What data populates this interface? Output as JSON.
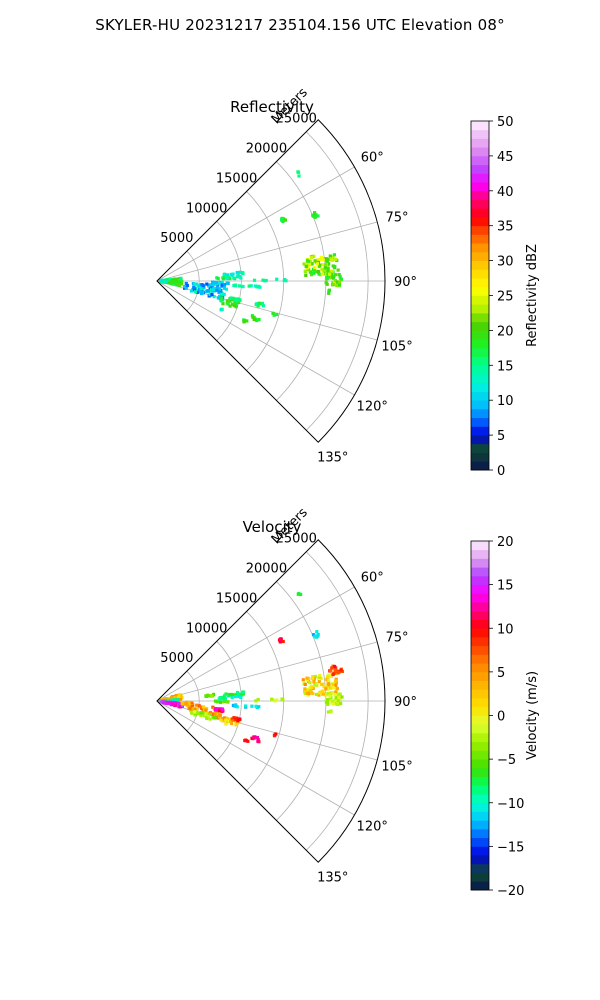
{
  "page_title": "SKYLER-HU  20231217  235104.156 UTC Elevation 08°",
  "chart_data": [
    {
      "type": "heatmap",
      "title": "Reflectivity",
      "projection": "polar sector",
      "range_axis_label": "Meters",
      "range_ticks": [
        5000,
        10000,
        15000,
        20000,
        25000
      ],
      "range_tick_labels": [
        "5000",
        "10000",
        "15000",
        "20000",
        "25000"
      ],
      "azimuth_range": [
        45,
        135
      ],
      "azimuth_ticks": [
        60,
        75,
        90,
        105,
        120,
        135
      ],
      "azimuth_tick_labels": [
        "60°",
        "75°",
        "90°",
        "105°",
        "120°",
        "135°"
      ],
      "grid": true,
      "colorbar": {
        "label": "Reflectivity dBZ",
        "min": 0,
        "max": 50,
        "ticks": [
          0,
          5,
          10,
          15,
          20,
          25,
          30,
          35,
          40,
          45,
          50
        ],
        "tick_labels": [
          "0",
          "5",
          "10",
          "15",
          "20",
          "25",
          "30",
          "35",
          "40",
          "45",
          "50"
        ],
        "stops": [
          {
            "v": 0,
            "c": "#0a1450"
          },
          {
            "v": 3,
            "c": "#0e4a30"
          },
          {
            "v": 5,
            "c": "#0000e0"
          },
          {
            "v": 7,
            "c": "#0060ff"
          },
          {
            "v": 9,
            "c": "#00b8ff"
          },
          {
            "v": 12,
            "c": "#00f0e0"
          },
          {
            "v": 15,
            "c": "#00ff90"
          },
          {
            "v": 18,
            "c": "#20f020"
          },
          {
            "v": 21,
            "c": "#50d000"
          },
          {
            "v": 23,
            "c": "#b0f000"
          },
          {
            "v": 26,
            "c": "#ffff00"
          },
          {
            "v": 29,
            "c": "#ffd000"
          },
          {
            "v": 32,
            "c": "#ff9000"
          },
          {
            "v": 34,
            "c": "#ff5000"
          },
          {
            "v": 36,
            "c": "#ff0000"
          },
          {
            "v": 39,
            "c": "#ff0080"
          },
          {
            "v": 41,
            "c": "#ff00ff"
          },
          {
            "v": 43,
            "c": "#c040ff"
          },
          {
            "v": 46,
            "c": "#e090f0"
          },
          {
            "v": 50,
            "c": "#fff0ff"
          }
        ]
      },
      "cells": [
        {
          "az": 84.5,
          "r": 19500,
          "daz": 7,
          "dr": 4000,
          "n": 95,
          "v": [
            17,
            26
          ]
        },
        {
          "az": 89.5,
          "r": 21000,
          "daz": 4,
          "dr": 2000,
          "n": 40,
          "v": [
            17,
            25
          ]
        },
        {
          "az": 67.5,
          "r": 20300,
          "daz": 2,
          "dr": 700,
          "n": 8,
          "v": [
            15,
            20
          ]
        },
        {
          "az": 64,
          "r": 16500,
          "daz": 1.5,
          "dr": 700,
          "n": 6,
          "v": [
            16,
            20
          ]
        },
        {
          "az": 53,
          "r": 21000,
          "daz": 1.5,
          "dr": 400,
          "n": 3,
          "v": [
            15,
            18
          ]
        },
        {
          "az": 93.5,
          "r": 20500,
          "daz": 1.5,
          "dr": 400,
          "n": 3,
          "v": [
            16,
            20
          ]
        },
        {
          "az": 92,
          "r": 1700,
          "daz": 18,
          "dr": 2500,
          "n": 120,
          "v": [
            11,
            21
          ]
        },
        {
          "az": 95,
          "r": 2200,
          "daz": 6,
          "dr": 1600,
          "n": 20,
          "v": [
            18,
            22
          ]
        },
        {
          "az": 100,
          "r": 5800,
          "daz": 13,
          "dr": 5000,
          "n": 80,
          "v": [
            6,
            14
          ]
        },
        {
          "az": 92.5,
          "r": 7500,
          "daz": 3,
          "dr": 2000,
          "n": 18,
          "v": [
            7,
            12
          ]
        },
        {
          "az": 98,
          "r": 7200,
          "daz": 3,
          "dr": 1000,
          "n": 14,
          "v": [
            7,
            12
          ]
        },
        {
          "az": 85,
          "r": 9200,
          "daz": 2,
          "dr": 2500,
          "n": 18,
          "v": [
            11,
            16
          ]
        },
        {
          "az": 87.5,
          "r": 8500,
          "daz": 1.5,
          "dr": 3000,
          "n": 14,
          "v": [
            12,
            18
          ]
        },
        {
          "az": 93.5,
          "r": 10500,
          "daz": 1.5,
          "dr": 3500,
          "n": 12,
          "v": [
            12,
            16
          ]
        },
        {
          "az": 106,
          "r": 9000,
          "daz": 6,
          "dr": 2200,
          "n": 26,
          "v": [
            15,
            22
          ]
        },
        {
          "az": 103,
          "r": 9500,
          "daz": 2,
          "dr": 1200,
          "n": 12,
          "v": [
            12,
            17
          ]
        },
        {
          "az": 111,
          "r": 12500,
          "daz": 2,
          "dr": 1000,
          "n": 8,
          "v": [
            16,
            21
          ]
        },
        {
          "az": 103,
          "r": 12500,
          "daz": 2,
          "dr": 1000,
          "n": 10,
          "v": [
            13,
            18
          ]
        },
        {
          "az": 114.5,
          "r": 11500,
          "daz": 1.5,
          "dr": 600,
          "n": 5,
          "v": [
            17,
            21
          ]
        },
        {
          "az": 106,
          "r": 14500,
          "daz": 1,
          "dr": 600,
          "n": 4,
          "v": [
            16,
            20
          ]
        },
        {
          "az": 89.5,
          "r": 13500,
          "daz": 1,
          "dr": 4000,
          "n": 8,
          "v": [
            13,
            18
          ]
        },
        {
          "az": 114,
          "r": 8500,
          "daz": 1,
          "dr": 400,
          "n": 3,
          "v": [
            12,
            16
          ]
        }
      ]
    },
    {
      "type": "heatmap",
      "title": "Velocity",
      "projection": "polar sector",
      "range_axis_label": "Meters",
      "range_ticks": [
        5000,
        10000,
        15000,
        20000,
        25000
      ],
      "range_tick_labels": [
        "5000",
        "10000",
        "15000",
        "20000",
        "25000"
      ],
      "azimuth_range": [
        45,
        135
      ],
      "azimuth_ticks": [
        60,
        75,
        90,
        105,
        120,
        135
      ],
      "azimuth_tick_labels": [
        "60°",
        "75°",
        "90°",
        "105°",
        "120°",
        "135°"
      ],
      "grid": true,
      "colorbar": {
        "label": "Velocity (m/s)",
        "min": -20,
        "max": 20,
        "ticks": [
          -20,
          -15,
          -10,
          -5,
          0,
          5,
          10,
          15,
          20
        ],
        "tick_labels": [
          "−20",
          "−15",
          "−10",
          "−5",
          "0",
          "5",
          "10",
          "15",
          "20"
        ],
        "stops": [
          {
            "v": -20,
            "c": "#0a1450"
          },
          {
            "v": -18,
            "c": "#0e4a30"
          },
          {
            "v": -16,
            "c": "#0000e0"
          },
          {
            "v": -14,
            "c": "#0060ff"
          },
          {
            "v": -12,
            "c": "#00c8ff"
          },
          {
            "v": -10,
            "c": "#00ffd0"
          },
          {
            "v": -8,
            "c": "#00ff60"
          },
          {
            "v": -6,
            "c": "#40e000"
          },
          {
            "v": -3,
            "c": "#a0f000"
          },
          {
            "v": -1,
            "c": "#e0ff30"
          },
          {
            "v": 1,
            "c": "#ffe000"
          },
          {
            "v": 3,
            "c": "#ffc000"
          },
          {
            "v": 6,
            "c": "#ff8000"
          },
          {
            "v": 8,
            "c": "#ff4000"
          },
          {
            "v": 10,
            "c": "#ff0000"
          },
          {
            "v": 12,
            "c": "#ff0080"
          },
          {
            "v": 14,
            "c": "#ff00ff"
          },
          {
            "v": 16,
            "c": "#b040ff"
          },
          {
            "v": 18,
            "c": "#e0a0f0"
          },
          {
            "v": 20,
            "c": "#fff0ff"
          }
        ]
      },
      "cells": [
        {
          "az": 84.5,
          "r": 19500,
          "daz": 7,
          "dr": 4000,
          "n": 95,
          "v": [
            -3,
            6
          ]
        },
        {
          "az": 80,
          "r": 21500,
          "daz": 3,
          "dr": 1500,
          "n": 20,
          "v": [
            6,
            11
          ]
        },
        {
          "az": 89.5,
          "r": 21000,
          "daz": 4,
          "dr": 2000,
          "n": 40,
          "v": [
            -4,
            0
          ]
        },
        {
          "az": 67.5,
          "r": 20300,
          "daz": 2,
          "dr": 700,
          "n": 8,
          "v": [
            -13,
            -10
          ]
        },
        {
          "az": 64,
          "r": 16500,
          "daz": 1.5,
          "dr": 700,
          "n": 6,
          "v": [
            9,
            12
          ]
        },
        {
          "az": 53,
          "r": 21000,
          "daz": 1.5,
          "dr": 400,
          "n": 3,
          "v": [
            -8,
            -6
          ]
        },
        {
          "az": 93.5,
          "r": 20500,
          "daz": 1.5,
          "dr": 400,
          "n": 3,
          "v": [
            -4,
            -2
          ]
        },
        {
          "az": 80,
          "r": 1800,
          "daz": 12,
          "dr": 2400,
          "n": 50,
          "v": [
            1,
            6
          ]
        },
        {
          "az": 90,
          "r": 1500,
          "daz": 8,
          "dr": 2200,
          "n": 50,
          "v": [
            -12,
            -7
          ]
        },
        {
          "az": 100,
          "r": 1800,
          "daz": 10,
          "dr": 2600,
          "n": 50,
          "v": [
            12,
            17
          ]
        },
        {
          "az": 95,
          "r": 3600,
          "daz": 6,
          "dr": 1400,
          "n": 22,
          "v": [
            2,
            7
          ]
        },
        {
          "az": 101,
          "r": 5800,
          "daz": 10,
          "dr": 4000,
          "n": 60,
          "v": [
            1,
            8
          ]
        },
        {
          "az": 107,
          "r": 5800,
          "daz": 6,
          "dr": 3000,
          "n": 30,
          "v": [
            -5,
            -1
          ]
        },
        {
          "az": 98,
          "r": 7400,
          "daz": 3,
          "dr": 1000,
          "n": 14,
          "v": [
            10,
            15
          ]
        },
        {
          "az": 84,
          "r": 6500,
          "daz": 2,
          "dr": 1500,
          "n": 10,
          "v": [
            -6,
            -3
          ]
        },
        {
          "az": 90.5,
          "r": 7500,
          "daz": 1.5,
          "dr": 2000,
          "n": 12,
          "v": [
            -6,
            -3
          ]
        },
        {
          "az": 85,
          "r": 9200,
          "daz": 2,
          "dr": 2500,
          "n": 18,
          "v": [
            -9,
            -6
          ]
        },
        {
          "az": 87.5,
          "r": 8500,
          "daz": 1.5,
          "dr": 3000,
          "n": 14,
          "v": [
            -11,
            -8
          ]
        },
        {
          "az": 93.5,
          "r": 10500,
          "daz": 1.5,
          "dr": 3500,
          "n": 12,
          "v": [
            -13,
            -10
          ]
        },
        {
          "az": 106,
          "r": 9000,
          "daz": 6,
          "dr": 2200,
          "n": 26,
          "v": [
            -1,
            6
          ]
        },
        {
          "az": 103,
          "r": 9500,
          "daz": 2,
          "dr": 1200,
          "n": 12,
          "v": [
            6,
            11
          ]
        },
        {
          "az": 111,
          "r": 12500,
          "daz": 2,
          "dr": 1000,
          "n": 10,
          "v": [
            8,
            13
          ]
        },
        {
          "az": 114.5,
          "r": 11500,
          "daz": 1.5,
          "dr": 600,
          "n": 5,
          "v": [
            8,
            11
          ]
        },
        {
          "az": 106,
          "r": 14500,
          "daz": 1,
          "dr": 600,
          "n": 4,
          "v": [
            8,
            11
          ]
        },
        {
          "az": 89.5,
          "r": 13500,
          "daz": 1,
          "dr": 4000,
          "n": 8,
          "v": [
            -4,
            0
          ]
        }
      ]
    }
  ]
}
